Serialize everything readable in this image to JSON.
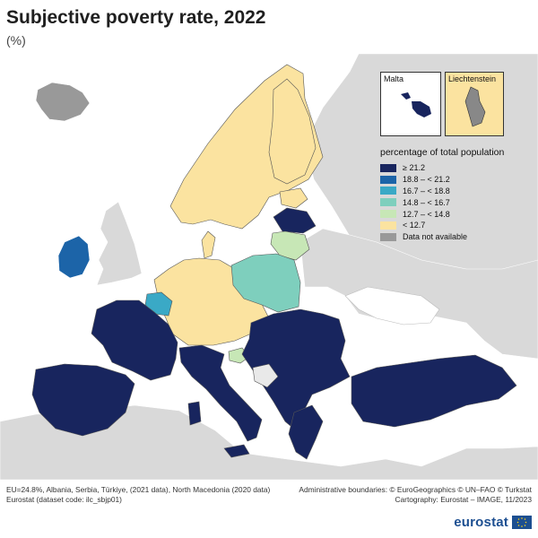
{
  "header": {
    "title": "Subjective poverty rate, 2022",
    "subtitle": "(%)"
  },
  "insets": [
    {
      "label": "Malta",
      "fill": "#18255e"
    },
    {
      "label": "Liechtenstein",
      "fill": "#888888"
    }
  ],
  "legend": {
    "title": "percentage of total population",
    "items": [
      {
        "label": "≥ 21.2",
        "color": "#18255e"
      },
      {
        "label": "18.8 – < 21.2",
        "color": "#1c64a8"
      },
      {
        "label": "16.7 – < 18.8",
        "color": "#3aa9c6"
      },
      {
        "label": "14.8 – < 16.7",
        "color": "#7ecfbd"
      },
      {
        "label": "12.7 – < 14.8",
        "color": "#c7e7b6"
      },
      {
        "label": "< 12.7",
        "color": "#fbe3a0"
      },
      {
        "label": "Data not available",
        "color": "#999999"
      }
    ]
  },
  "map_regions": [
    {
      "name": "Iceland",
      "class": "Data not available"
    },
    {
      "name": "Ireland",
      "class": "18.8 – < 21.2"
    },
    {
      "name": "Belgium",
      "class": "16.7 – < 18.8"
    },
    {
      "name": "Poland",
      "class": "14.8 – < 16.7"
    },
    {
      "name": "Lithuania",
      "class": "12.7 – < 14.8"
    },
    {
      "name": "Slovenia",
      "class": "12.7 – < 14.8"
    },
    {
      "name": "Latvia",
      "class": "≥ 21.2"
    },
    {
      "name": "Nordics and Central Europe",
      "class": "< 12.7"
    },
    {
      "name": "Southern and Eastern Europe",
      "class": "≥ 21.2"
    }
  ],
  "footer": {
    "note1": "EU=24.8%, Albania, Serbia, Türkiye, (2021 data), North Macedonia (2020 data)",
    "note2": "Eurostat (dataset code: ilc_sbjp01)",
    "credit1": "Administrative boundaries: © EuroGeographics © UN–FAO © Turkstat",
    "credit2": "Cartography: Eurostat – IMAGE, 11/2023",
    "logo": "eurostat"
  }
}
